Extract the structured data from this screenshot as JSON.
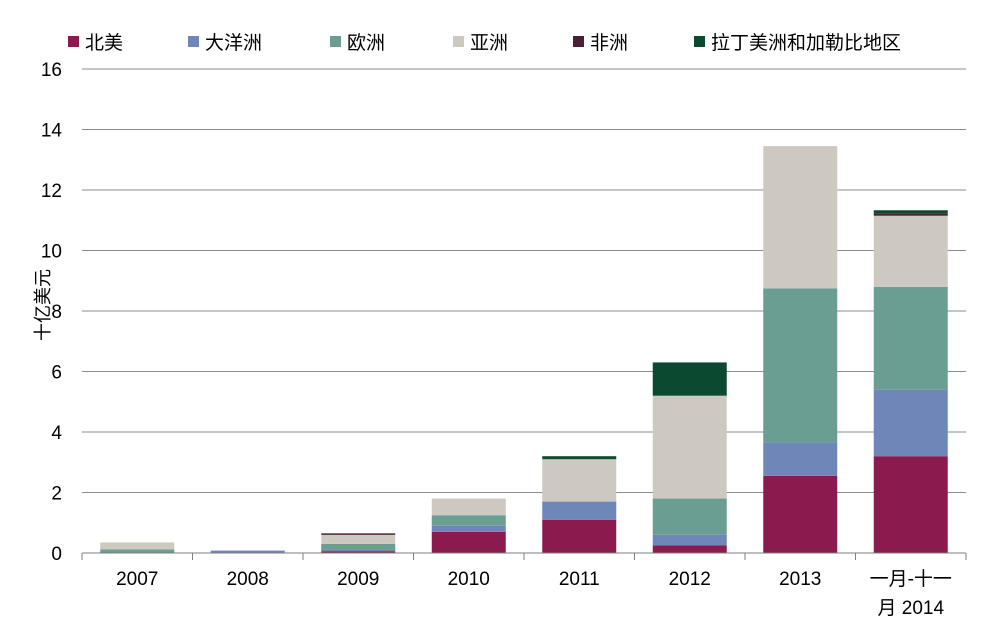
{
  "chart_data": {
    "type": "bar",
    "stacked": true,
    "categories": [
      "2007",
      "2008",
      "2009",
      "2010",
      "2011",
      "2012",
      "2013",
      "一月-十一月 2014"
    ],
    "category_label_lines": [
      [
        "2007"
      ],
      [
        "2008"
      ],
      [
        "2009"
      ],
      [
        "2010"
      ],
      [
        "2011"
      ],
      [
        "2012"
      ],
      [
        "2013"
      ],
      [
        "一月-十一",
        "月 2014"
      ]
    ],
    "ylabel": "十亿美元",
    "ylim": [
      0,
      16
    ],
    "yticks": [
      0,
      2,
      4,
      6,
      8,
      10,
      12,
      14,
      16
    ],
    "grid": true,
    "legend_position": "top",
    "series": [
      {
        "name": "北美",
        "color": "#8b1a4e",
        "values": [
          0,
          0,
          0.05,
          0.7,
          1.1,
          0.25,
          2.55,
          3.2
        ]
      },
      {
        "name": "大洋洲",
        "color": "#6e86b8",
        "values": [
          0,
          0.08,
          0.05,
          0.2,
          0.6,
          0.35,
          1.1,
          2.2
        ]
      },
      {
        "name": "欧洲",
        "color": "#6a9e92",
        "values": [
          0.12,
          0,
          0.2,
          0.35,
          0,
          1.2,
          5.1,
          3.4
        ]
      },
      {
        "name": "亚洲",
        "color": "#cdc9c0",
        "values": [
          0.23,
          0,
          0.3,
          0.55,
          1.4,
          3.4,
          4.7,
          2.35
        ]
      },
      {
        "name": "非洲",
        "color": "#4a2036",
        "values": [
          0,
          0,
          0.05,
          0,
          0,
          0,
          0,
          0.08
        ]
      },
      {
        "name": "拉丁美洲和加勒比地区",
        "color": "#0b4a30",
        "values": [
          0,
          0,
          0,
          0,
          0.1,
          1.1,
          0,
          0.1
        ]
      }
    ]
  }
}
